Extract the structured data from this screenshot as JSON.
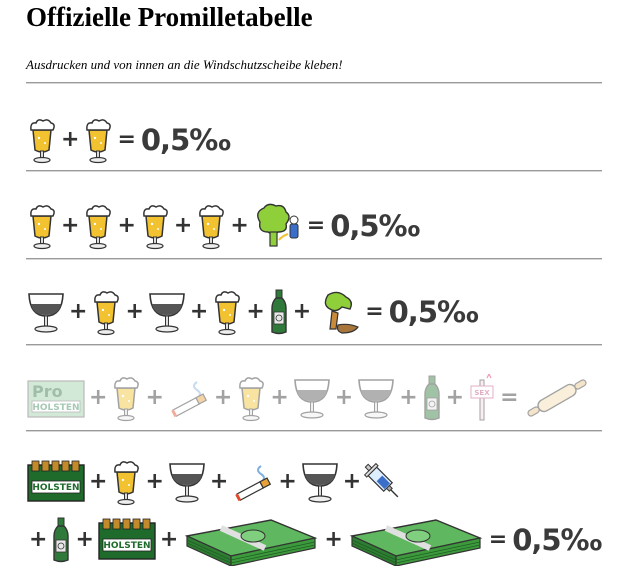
{
  "page": {
    "title": "Offizielle Promilletabelle",
    "subtitle": "Ausdrucken und von innen an die Windschutzscheibe kleben!"
  },
  "symbols": {
    "plus": "+",
    "equals": "="
  },
  "rows": [
    {
      "items": [
        "beer-glass",
        "beer-glass"
      ],
      "result": "0,5‰"
    },
    {
      "items": [
        "beer-glass",
        "beer-glass",
        "beer-glass",
        "beer-glass",
        "peeing-tree"
      ],
      "result": "0,5‰"
    },
    {
      "items": [
        "wine-glass",
        "beer-glass",
        "wine-glass",
        "beer-glass",
        "wine-bottle",
        "vomiting-figure"
      ],
      "result": "0,5‰"
    },
    {
      "items": [
        "holsten-crate-pro",
        "beer-glass",
        "cigarette",
        "beer-glass",
        "wine-glass",
        "wine-glass",
        "wine-bottle",
        "sex-sign"
      ],
      "result_icon": "rolling-pin",
      "faded": true
    },
    {
      "items": [
        "holsten-crate",
        "beer-glass",
        "wine-glass",
        "cigarette",
        "wine-glass",
        "syringe",
        "wine-bottle",
        "holsten-crate",
        "money-stack",
        "money-stack"
      ],
      "result": "0,5‰"
    }
  ],
  "crate_label": "HOLSTEN",
  "crate_pro_label": "Pro",
  "sign_label": "SEX",
  "colors": {
    "beer": "#f2c230",
    "foam": "#ffffff",
    "bottle": "#2f7a3a",
    "crate": "#1f6b2c",
    "money": "#3c9a3c",
    "text": "#3a3a3a",
    "rule": "#9a9a9a"
  }
}
